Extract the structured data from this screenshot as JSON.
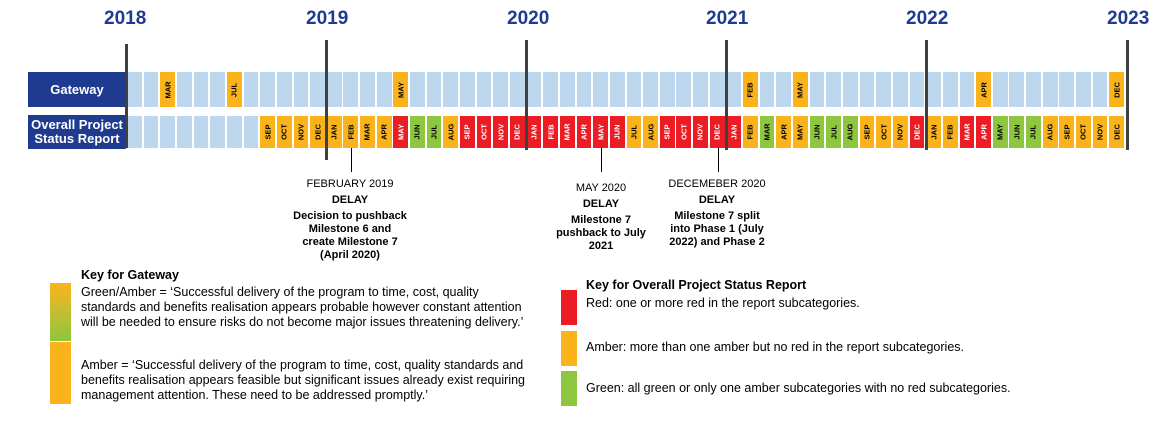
{
  "colors": {
    "navy": "#1f3b8f",
    "year_text": "#1f3b8f",
    "light_blue": "#bcd7ee",
    "amber": "#fbb31c",
    "red": "#ec1c24",
    "green": "#8dc63f"
  },
  "years": [
    "2018",
    "2019",
    "2020",
    "2021",
    "2022",
    "2023"
  ],
  "rows": {
    "gateway_label": "Gateway",
    "status_label": "Overall Project Status Report"
  },
  "gateway": {
    "labels": {
      "2": "MAR",
      "6": "JUL",
      "16": "MAY",
      "37": "FEB",
      "40": "MAY",
      "51": "APR",
      "59": "DEC"
    },
    "cells": [
      "n",
      "n",
      "a",
      "n",
      "n",
      "n",
      "a",
      "n",
      "n",
      "n",
      "n",
      "n",
      "n",
      "n",
      "n",
      "n",
      "a",
      "n",
      "n",
      "n",
      "n",
      "n",
      "n",
      "n",
      "n",
      "n",
      "n",
      "n",
      "n",
      "n",
      "n",
      "n",
      "n",
      "n",
      "n",
      "n",
      "n",
      "a",
      "n",
      "n",
      "a",
      "n",
      "n",
      "n",
      "n",
      "n",
      "n",
      "n",
      "n",
      "n",
      "n",
      "a",
      "n",
      "n",
      "n",
      "n",
      "n",
      "n",
      "n",
      "a"
    ]
  },
  "status": {
    "start": 8,
    "months": [
      "SEP",
      "OCT",
      "NOV",
      "DEC",
      "JAN",
      "FEB",
      "MAR",
      "APR",
      "MAY",
      "JUN",
      "JUL",
      "AUG",
      "SEP",
      "OCT",
      "NOV",
      "DEC",
      "JAN",
      "FEB",
      "MAR",
      "APR",
      "MAY",
      "JUN",
      "JUL",
      "AUG",
      "SEP",
      "OCT",
      "NOV",
      "DEC",
      "JAN",
      "FEB",
      "MAR",
      "APR",
      "MAY",
      "JUN",
      "JUL",
      "AUG",
      "SEP",
      "OCT",
      "NOV",
      "DEC",
      "JAN",
      "FEB",
      "MAR",
      "APR",
      "MAY",
      "JUN",
      "JUL",
      "AUG",
      "SEP",
      "OCT",
      "NOV",
      "DEC"
    ],
    "colors": [
      "a",
      "a",
      "a",
      "a",
      "a",
      "a",
      "a",
      "a",
      "r",
      "g",
      "g",
      "a",
      "r",
      "r",
      "r",
      "r",
      "r",
      "r",
      "r",
      "r",
      "r",
      "r",
      "a",
      "a",
      "r",
      "r",
      "r",
      "r",
      "r",
      "a",
      "g",
      "a",
      "a",
      "g",
      "g",
      "g",
      "a",
      "a",
      "a",
      "r",
      "a",
      "a",
      "r",
      "r",
      "g",
      "g",
      "g",
      "a",
      "a",
      "a",
      "a",
      "a"
    ]
  },
  "annotations": [
    {
      "date": "FEBRUARY 2019",
      "status": "DELAY",
      "text": "Decision to pushback Milestone 6 and create Milestone 7 (April 2020)"
    },
    {
      "date": "MAY 2020",
      "status": "DELAY",
      "text": "Milestone 7 pushback to July 2021"
    },
    {
      "date": "DECEMEBER 2020",
      "status": "DELAY",
      "text": "Milestone 7 split into Phase 1 (July 2022) and Phase 2"
    }
  ],
  "key_gateway": {
    "title": "Key for Gateway",
    "items": [
      {
        "swatch": "green-amber",
        "text": "Green/Amber = ‘Successful delivery of the program to time, cost, quality standards and benefits realisation appears probable however constant attention will be needed to ensure risks do not become major issues threatening delivery.’"
      },
      {
        "swatch": "amber",
        "text": "Amber = ‘Successful delivery of the program to time, cost, quality standards and benefits realisation appears feasible but significant issues already exist requiring management attention. These need to be addressed promptly.’"
      }
    ]
  },
  "key_status": {
    "title": "Key for Overall Project Status Report",
    "items": [
      {
        "swatch": "red",
        "text": "Red: one or more red in the report subcategories."
      },
      {
        "swatch": "amber",
        "text": "Amber: more than one amber but no red in the report subcategories."
      },
      {
        "swatch": "green",
        "text": "Green: all green or only one amber subcategories with no red subcategories."
      }
    ]
  }
}
